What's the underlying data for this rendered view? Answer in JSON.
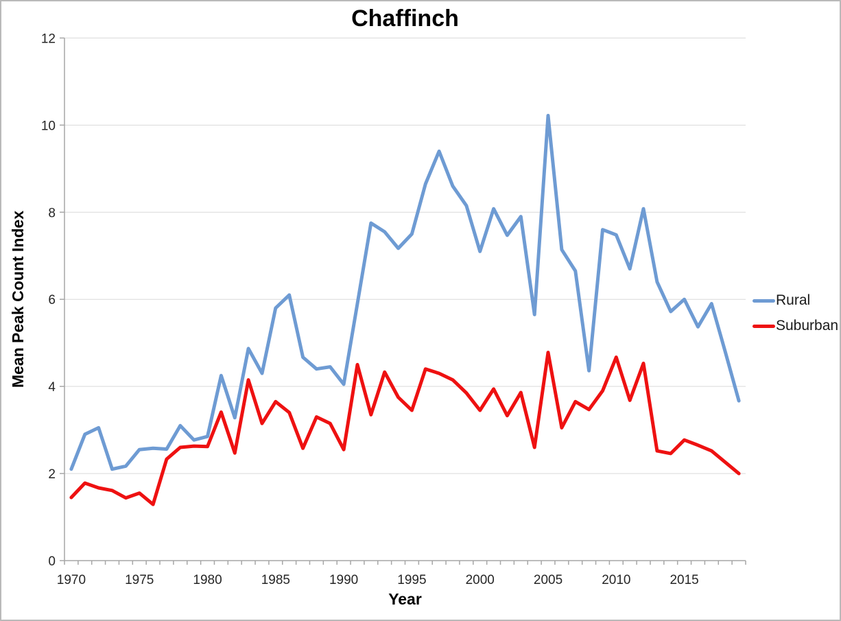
{
  "chart_data": {
    "type": "line",
    "title": "Chaffinch",
    "xlabel": "Year",
    "ylabel": "Mean Peak Count Index",
    "ylim": [
      0,
      12
    ],
    "y_ticks": [
      0,
      2,
      4,
      6,
      8,
      10,
      12
    ],
    "grid": "horizontal-only",
    "legend_position": "right-middle",
    "x": [
      1970,
      1971,
      1972,
      1973,
      1974,
      1975,
      1976,
      1977,
      1978,
      1979,
      1980,
      1981,
      1982,
      1983,
      1984,
      1985,
      1986,
      1987,
      1988,
      1989,
      1990,
      1991,
      1992,
      1993,
      1994,
      1995,
      1996,
      1997,
      1998,
      1999,
      2000,
      2001,
      2002,
      2003,
      2004,
      2005,
      2006,
      2007,
      2008,
      2009,
      2010,
      2011,
      2012,
      2013,
      2014,
      2015,
      2016,
      2017,
      2018,
      2019
    ],
    "x_tick_labels": [
      1970,
      1975,
      1980,
      1985,
      1990,
      1995,
      2000,
      2005,
      2010,
      2015
    ],
    "series": [
      {
        "name": "Rural",
        "color": "#6e9bd3",
        "values": [
          2.1,
          2.9,
          3.05,
          2.1,
          2.17,
          2.55,
          2.58,
          2.56,
          3.1,
          2.77,
          2.85,
          4.25,
          3.28,
          4.87,
          4.3,
          5.8,
          6.1,
          4.67,
          4.4,
          4.45,
          4.05,
          5.9,
          7.75,
          7.55,
          7.17,
          7.5,
          8.65,
          9.4,
          8.6,
          8.15,
          7.1,
          8.08,
          7.47,
          7.9,
          5.65,
          10.22,
          7.14,
          6.65,
          4.36,
          7.6,
          7.48,
          6.7,
          8.08,
          6.4,
          5.72,
          6.0,
          5.37,
          5.9,
          4.8,
          3.67
        ]
      },
      {
        "name": "Suburban",
        "color": "#ee1111",
        "values": [
          1.45,
          1.78,
          1.67,
          1.61,
          1.44,
          1.55,
          1.29,
          2.33,
          2.6,
          2.63,
          2.62,
          3.41,
          2.47,
          4.15,
          3.15,
          3.65,
          3.4,
          2.58,
          3.3,
          3.15,
          2.55,
          4.5,
          3.35,
          4.33,
          3.75,
          3.45,
          4.4,
          4.3,
          4.15,
          3.85,
          3.45,
          3.94,
          3.33,
          3.86,
          2.6,
          4.78,
          3.05,
          3.65,
          3.47,
          3.9,
          4.67,
          3.68,
          4.53,
          2.52,
          2.46,
          2.77,
          2.65,
          2.52,
          2.26,
          2.0
        ]
      }
    ]
  }
}
